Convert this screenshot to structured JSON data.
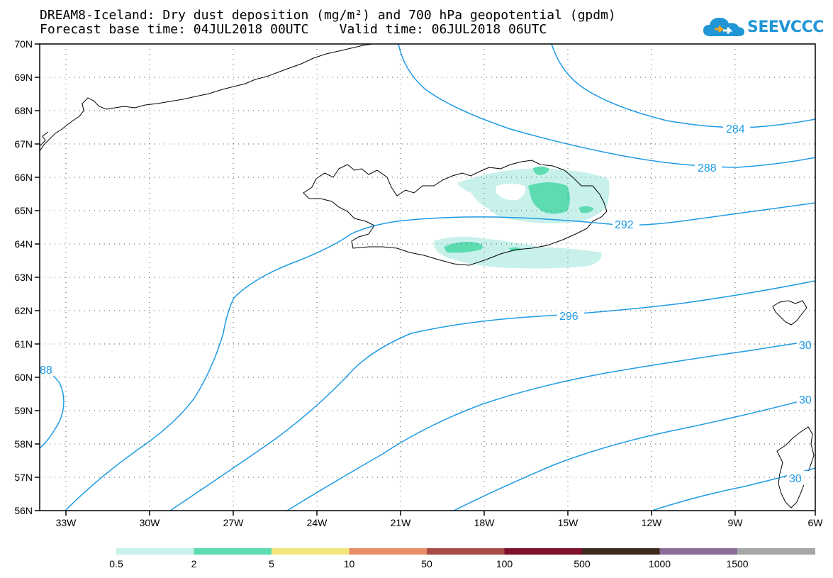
{
  "title": {
    "line1": "DREAM8-Iceland: Dry dust deposition (mg/m²) and 700 hPa geopotential (gpdm)",
    "line2": "Forecast base time: 04JUL2018 00UTC    Valid time: 06JUL2018 06UTC"
  },
  "logo": {
    "text": "SEEVCCC",
    "icon": "cloud-icon",
    "color": "#2196d6",
    "accent": "#f5a623"
  },
  "axes": {
    "lat_labels": [
      "70N",
      "69N",
      "68N",
      "67N",
      "66N",
      "65N",
      "64N",
      "63N",
      "62N",
      "61N",
      "60N",
      "59N",
      "58N",
      "57N",
      "56N"
    ],
    "lon_labels": [
      "33W",
      "30W",
      "27W",
      "24W",
      "21W",
      "18W",
      "15W",
      "12W",
      "9W",
      "6W"
    ],
    "lat_range": [
      56,
      70
    ],
    "lon_range": [
      -34,
      -6
    ],
    "grid": "dotted"
  },
  "contour_labels": [
    {
      "text": "284"
    },
    {
      "text": "288"
    },
    {
      "text": "292"
    },
    {
      "text": "296"
    },
    {
      "text": "30"
    },
    {
      "text": "30"
    },
    {
      "text": "30"
    },
    {
      "text": "88"
    }
  ],
  "contour_color": "#1e9be6",
  "colorbar": {
    "labels": [
      "0.5",
      "2",
      "5",
      "10",
      "50",
      "100",
      "500",
      "1000",
      "1500"
    ],
    "colors": [
      "#c8f1eb",
      "#5ddcb2",
      "#f3e67c",
      "#e98e6a",
      "#a84a45",
      "#7f0f2d",
      "#3b2a1d",
      "#8a6a96",
      "#a6a6a6"
    ]
  },
  "dust_colors": {
    "light": "#c8f1eb",
    "medium": "#5ddcb2"
  }
}
